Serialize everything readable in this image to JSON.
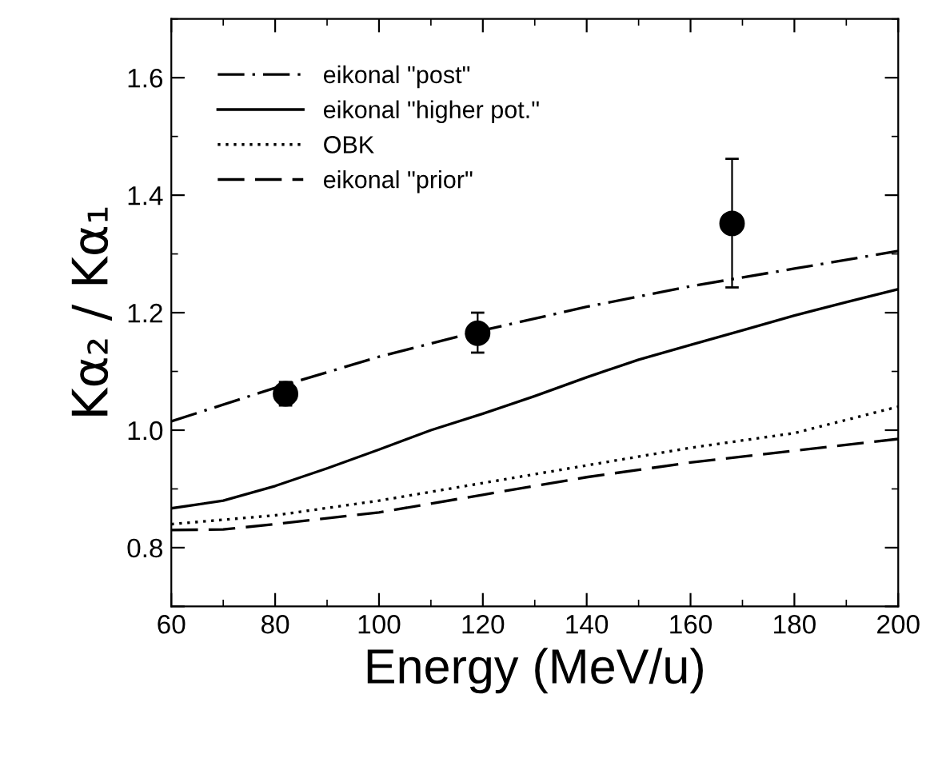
{
  "chart_data": {
    "type": "line",
    "xlabel": "Energy (MeV/u)",
    "ylabel": "Kα₂ / Kα₁",
    "xlim": [
      60,
      200
    ],
    "ylim": [
      0.7,
      1.7
    ],
    "xticks": [
      60,
      80,
      100,
      120,
      140,
      160,
      180,
      200
    ],
    "yticks": [
      {
        "value": 0.7,
        "label": null
      },
      {
        "value": 0.8,
        "label": "0.8"
      },
      {
        "value": 1.0,
        "label": "1.0"
      },
      {
        "value": 1.2,
        "label": "1.2"
      },
      {
        "value": 1.4,
        "label": "1.4"
      },
      {
        "value": 1.6,
        "label": "1.6"
      }
    ],
    "grid": false,
    "legend": "top left",
    "marker": "none",
    "series": [
      {
        "name": "eikonal \"post\"",
        "color": "#000000",
        "line_style": "dashdot",
        "x": [
          60,
          80,
          100,
          120,
          140,
          160,
          180,
          200
        ],
        "values": [
          1.015,
          1.072,
          1.125,
          1.17,
          1.21,
          1.245,
          1.275,
          1.305
        ]
      },
      {
        "name": "eikonal \"higher pot.\"",
        "color": "#000000",
        "line_style": "solid",
        "x": [
          60,
          70,
          80,
          90,
          100,
          110,
          120,
          130,
          140,
          150,
          160,
          170,
          180,
          190,
          200
        ],
        "values": [
          0.867,
          0.88,
          0.905,
          0.935,
          0.967,
          1.0,
          1.028,
          1.058,
          1.09,
          1.12,
          1.145,
          1.17,
          1.195,
          1.218,
          1.24
        ]
      },
      {
        "name": "OBK",
        "color": "#000000",
        "line_style": "dotted",
        "x": [
          60,
          80,
          100,
          120,
          140,
          160,
          180,
          200
        ],
        "values": [
          0.84,
          0.855,
          0.88,
          0.91,
          0.94,
          0.97,
          0.995,
          1.04
        ]
      },
      {
        "name": "eikonal \"prior\"",
        "color": "#000000",
        "line_style": "dashed",
        "x": [
          60,
          70,
          80,
          100,
          120,
          140,
          160,
          180,
          200
        ],
        "values": [
          0.83,
          0.831,
          0.84,
          0.86,
          0.89,
          0.92,
          0.945,
          0.965,
          0.985
        ]
      },
      {
        "type": "scatter",
        "marker": "circle",
        "color": "#000000",
        "x": [
          82,
          119,
          168
        ],
        "values": [
          1.062,
          1.165,
          1.352
        ],
        "errors": [
          [
            1.042,
            1.082
          ],
          [
            1.132,
            1.2
          ],
          [
            1.243,
            1.462
          ]
        ]
      }
    ]
  }
}
